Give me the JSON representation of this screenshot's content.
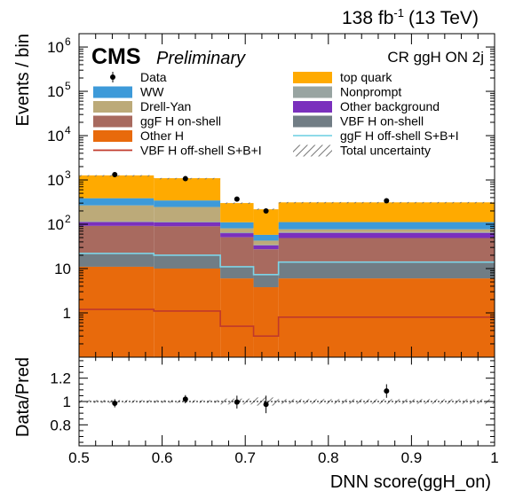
{
  "chart_data": {
    "type": "bar",
    "stacked": true,
    "lumi_label": "138 fb",
    "lumi_exponent": "-1",
    "energy_label": "(13 TeV)",
    "experiment": "CMS",
    "status": "Preliminary",
    "region": "CR ggH ON 2j",
    "bin_edges": [
      0.5,
      0.59,
      0.67,
      0.71,
      0.74,
      1.0
    ],
    "upper_panel": {
      "ylabel": "Events / bin",
      "yscale": "log",
      "ylim": [
        0.1,
        2000000
      ],
      "yticks": [
        {
          "value": 1,
          "label": "1"
        },
        {
          "value": 10,
          "label": "10"
        },
        {
          "value": 100,
          "label": "10",
          "exp": "2"
        },
        {
          "value": 1000,
          "label": "10",
          "exp": "3"
        },
        {
          "value": 10000,
          "label": "10",
          "exp": "4"
        },
        {
          "value": 100000,
          "label": "10",
          "exp": "5"
        },
        {
          "value": 1000000,
          "label": "10",
          "exp": "6"
        }
      ]
    },
    "series": [
      {
        "name": "Other H",
        "color": "#e86a0c",
        "values": [
          11,
          10,
          6,
          3.8,
          6
        ]
      },
      {
        "name": "VBF H on-shell",
        "color": "#717d85",
        "values": [
          11,
          10,
          5,
          3.5,
          8
        ]
      },
      {
        "name": "ggF H on-shell",
        "color": "#a86a5f",
        "values": [
          70,
          70,
          40,
          20,
          35
        ]
      },
      {
        "name": "Other background",
        "color": "#7a30bd",
        "values": [
          20,
          20,
          12,
          6,
          15
        ]
      },
      {
        "name": "Nonprompt",
        "color": "#98a4a1",
        "values": [
          5,
          5,
          3,
          1.5,
          3
        ]
      },
      {
        "name": "Drell-Yan",
        "color": "#bcaa79",
        "values": [
          150,
          130,
          15,
          8,
          10
        ]
      },
      {
        "name": "WW",
        "color": "#3d9ad9",
        "values": [
          120,
          100,
          30,
          15,
          35
        ]
      },
      {
        "name": "top quark",
        "color": "#ffaa00",
        "values": [
          880,
          750,
          190,
          160,
          200
        ]
      }
    ],
    "overlay_lines": [
      {
        "name": "VBF H off-shell S+B+I",
        "color": "#c0392b",
        "values": [
          1.2,
          1.1,
          0.5,
          0.3,
          0.8
        ]
      },
      {
        "name": "ggF H off-shell S+B+I",
        "color": "#7fd4e6",
        "values": [
          22,
          20,
          11,
          7.3,
          14
        ]
      }
    ],
    "data": {
      "name": "Data",
      "x": [
        0.543,
        0.628,
        0.69,
        0.725,
        0.87
      ],
      "y": [
        1320,
        1070,
        370,
        200,
        340
      ],
      "ratio": [
        0.985,
        1.02,
        0.995,
        0.975,
        1.09
      ],
      "ratio_err": [
        0.035,
        0.035,
        0.055,
        0.075,
        0.058
      ]
    },
    "uncertainty": {
      "name": "Total uncertainty",
      "rel": [
        0.012,
        0.012,
        0.025,
        0.035,
        0.02
      ]
    },
    "lower_panel": {
      "ylabel": "Data/Pred",
      "ylim": [
        0.62,
        1.38
      ],
      "yticks": [
        {
          "value": 0.8,
          "label": "0.8"
        },
        {
          "value": 1.0,
          "label": "1"
        },
        {
          "value": 1.2,
          "label": "1.2"
        }
      ]
    },
    "xlabel": "DNN score(ggH_on)",
    "xlim": [
      0.5,
      1.0
    ],
    "xticks": [
      {
        "value": 0.5,
        "label": "0.5"
      },
      {
        "value": 0.6,
        "label": "0.6"
      },
      {
        "value": 0.7,
        "label": "0.7"
      },
      {
        "value": 0.8,
        "label": "0.8"
      },
      {
        "value": 0.9,
        "label": "0.9"
      },
      {
        "value": 1.0,
        "label": "1"
      }
    ],
    "legend": {
      "placement": "top",
      "columns": 2,
      "entries": [
        {
          "label": "Data",
          "kind": "marker",
          "color": "#000000"
        },
        {
          "label": "top quark",
          "kind": "fill",
          "color": "#ffaa00"
        },
        {
          "label": "WW",
          "kind": "fill",
          "color": "#3d9ad9"
        },
        {
          "label": "Nonprompt",
          "kind": "fill",
          "color": "#98a4a1"
        },
        {
          "label": "Drell-Yan",
          "kind": "fill",
          "color": "#bcaa79"
        },
        {
          "label": "Other background",
          "kind": "fill",
          "color": "#7a30bd"
        },
        {
          "label": "ggF H on-shell",
          "kind": "fill",
          "color": "#a86a5f"
        },
        {
          "label": "VBF H on-shell",
          "kind": "fill",
          "color": "#717d85"
        },
        {
          "label": "Other H",
          "kind": "fill",
          "color": "#e86a0c"
        },
        {
          "label": "ggF H off-shell S+B+I",
          "kind": "line",
          "color": "#7fd4e6"
        },
        {
          "label": "VBF H off-shell S+B+I",
          "kind": "line",
          "color": "#c0392b"
        },
        {
          "label": "Total uncertainty",
          "kind": "hatch",
          "color": "#777777"
        }
      ]
    }
  }
}
